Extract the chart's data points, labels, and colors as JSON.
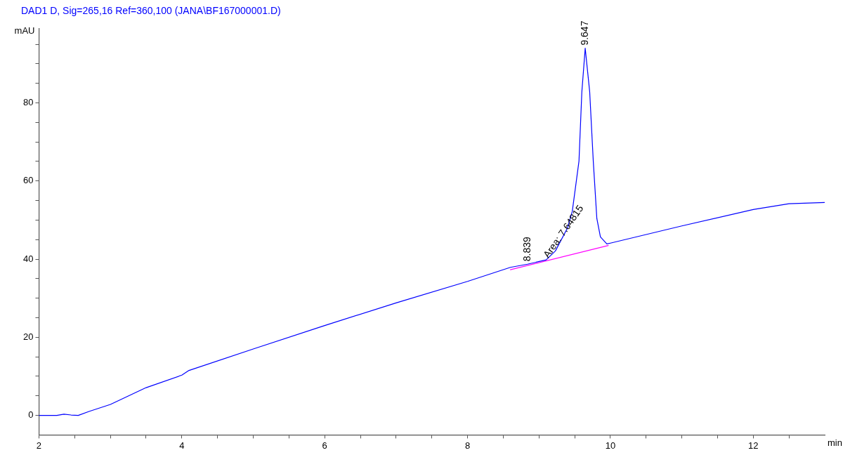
{
  "chart_data": {
    "type": "line",
    "title": "DAD1 D, Sig=265,16 Ref=360,100 (JANA\\BF167000001.D)",
    "xlabel": "min",
    "ylabel": "mAU",
    "xlim": [
      2,
      13
    ],
    "ylim": [
      -5,
      99
    ],
    "xticks": [
      2,
      {
        "value": 2.5,
        "label": null
      },
      {
        "value": 3,
        "label": null
      },
      {
        "value": 3.5,
        "label": null
      },
      4,
      {
        "value": 4.5,
        "label": null
      },
      {
        "value": 5,
        "label": null
      },
      {
        "value": 5.5,
        "label": null
      },
      6,
      {
        "value": 6.5,
        "label": null
      },
      {
        "value": 7,
        "label": null
      },
      {
        "value": 7.5,
        "label": null
      },
      8,
      {
        "value": 8.5,
        "label": null
      },
      {
        "value": 9,
        "label": null
      },
      {
        "value": 9.5,
        "label": null
      },
      10,
      {
        "value": 10.5,
        "label": null
      },
      {
        "value": 11,
        "label": null
      },
      {
        "value": 11.5,
        "label": null
      },
      12,
      {
        "value": 12.5,
        "label": null
      }
    ],
    "yticks": [
      0,
      {
        "value": 5,
        "label": null
      },
      {
        "value": 10,
        "label": null
      },
      {
        "value": 15,
        "label": null
      },
      20,
      {
        "value": 25,
        "label": null
      },
      {
        "value": 30,
        "label": null
      },
      {
        "value": 35,
        "label": null
      },
      40,
      {
        "value": 45,
        "label": null
      },
      {
        "value": 50,
        "label": null
      },
      {
        "value": 55,
        "label": null
      },
      60,
      {
        "value": 65,
        "label": null
      },
      {
        "value": 70,
        "label": null
      },
      {
        "value": 75,
        "label": null
      },
      80,
      {
        "value": 85,
        "label": null
      },
      {
        "value": 90,
        "label": null
      },
      {
        "value": 95,
        "label": null
      }
    ],
    "series": [
      {
        "color": "#0000ff",
        "x": [
          2,
          2.25,
          2.35,
          2.45,
          2.55,
          2.7,
          3,
          3.5,
          4,
          4.1,
          5,
          6,
          7,
          8,
          8.6,
          8.839,
          9.1,
          9.23,
          9.4,
          9.466,
          9.56,
          9.6,
          9.647,
          9.71,
          9.76,
          9.81,
          9.86,
          9.95,
          10,
          11,
          12,
          12.5,
          13
        ],
        "values": [
          0,
          0,
          0.3,
          0.1,
          0,
          1,
          2.8,
          7.1,
          10.3,
          11.5,
          17,
          23,
          28.8,
          34.3,
          37.9,
          38.7,
          39.8,
          42.1,
          48,
          52.2,
          65.1,
          82.8,
          94,
          82.8,
          65.1,
          50.4,
          45.7,
          43.9,
          44.1,
          48.5,
          52.7,
          54.2,
          54.5
        ]
      },
      {
        "type": "line",
        "color": "#ff00ff",
        "x": [
          8.6,
          9.97
        ],
        "values": [
          37.3,
          43.5
        ]
      }
    ],
    "annotations": [
      {
        "text": "9.647",
        "x": 9.647,
        "y": 94
      },
      {
        "text": "8.839",
        "x": 8.839,
        "y": 38.7
      },
      {
        "text": "Area: 7.64815",
        "x": 9.1,
        "y": 39.8
      }
    ],
    "legend": false,
    "grid": false,
    "marker": "none",
    "line_style": "solid"
  }
}
